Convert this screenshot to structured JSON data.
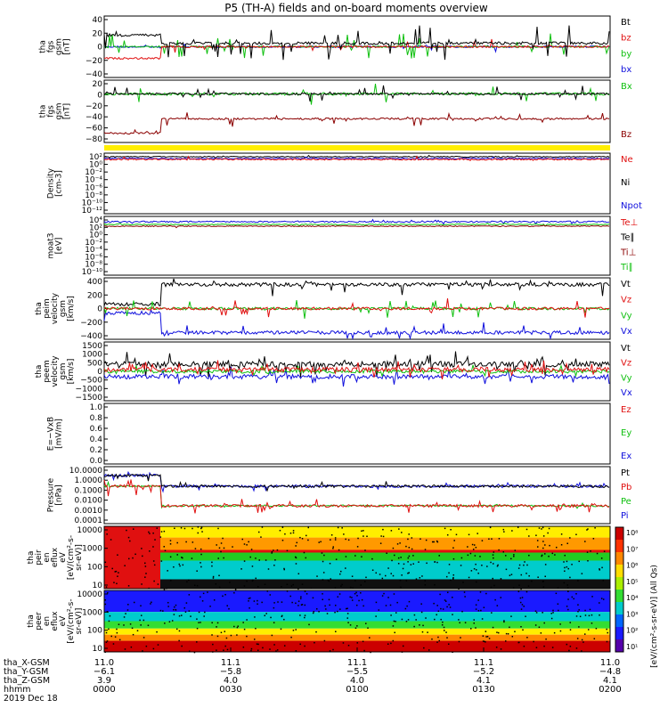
{
  "title": "P5 (TH-A) fields and on-board moments overview",
  "colorbar_unit": "[eV/(cm²-s-sr-eV)] (All Qs)",
  "colorbar_ticks": [
    "10⁸",
    "10⁷",
    "10⁶",
    "10⁵",
    "10⁴",
    "10³",
    "10²",
    "10¹"
  ],
  "colors": {
    "black": "#000000",
    "red": "#e01010",
    "green": "#10c010",
    "blue": "#1010dd",
    "darkred": "#8b0000",
    "yellow": "#ffee00"
  },
  "panels": [
    {
      "id": "fgs-gsm",
      "ylabel_lines": [
        "tha",
        "fgs",
        "gsm",
        "[nT]"
      ],
      "ticks": [
        "40",
        "20",
        "0",
        "−20",
        "−40"
      ],
      "legend": [
        {
          "text": "Bt",
          "color": "#000000"
        },
        {
          "text": "bz",
          "color": "#e01010"
        },
        {
          "text": "by",
          "color": "#10c010"
        },
        {
          "text": "bx",
          "color": "#1010dd"
        }
      ]
    },
    {
      "id": "fgs-gsm-dsl",
      "ylabel_lines": [
        "tha",
        "fgs",
        "gsm",
        "[nT]"
      ],
      "ticks": [
        "20",
        "0",
        "−20",
        "−40",
        "−60",
        "−80"
      ],
      "legend": [
        {
          "text": "Bx",
          "color": "#10c010"
        },
        {
          "text": "Bz",
          "color": "#8b0000"
        }
      ]
    },
    {
      "id": "density",
      "ylabel_lines": [
        "Density",
        "[cm-3]"
      ],
      "ticks": [
        "10²",
        "10⁰",
        "10⁻²",
        "10⁻⁴",
        "10⁻⁶",
        "10⁻⁸",
        "10⁻¹⁰",
        "10⁻¹²"
      ],
      "legend": [
        {
          "text": "Ne",
          "color": "#e01010"
        },
        {
          "text": "Ni",
          "color": "#000000"
        },
        {
          "text": "Npot",
          "color": "#1010dd"
        }
      ]
    },
    {
      "id": "temperature",
      "ylabel_lines": [
        "moat3",
        "[eV]"
      ],
      "ticks": [
        "10⁴",
        "10²",
        "10⁰",
        "10⁻²",
        "10⁻⁴",
        "10⁻⁶",
        "10⁻⁸",
        "10⁻¹⁰"
      ],
      "legend": [
        {
          "text": "Te⊥",
          "color": "#e01010"
        },
        {
          "text": "Te∥",
          "color": "#000000"
        },
        {
          "text": "Ti⊥",
          "color": "#8b0000"
        },
        {
          "text": "Ti∥",
          "color": "#10c010"
        }
      ]
    },
    {
      "id": "ion-velocity",
      "ylabel_lines": [
        "tha",
        "peim",
        "velocity",
        "gsm",
        "[km/s]"
      ],
      "ticks": [
        "400",
        "200",
        "0",
        "−200",
        "−400"
      ],
      "legend": [
        {
          "text": "Vt",
          "color": "#000000"
        },
        {
          "text": "Vz",
          "color": "#e01010"
        },
        {
          "text": "Vy",
          "color": "#10c010"
        },
        {
          "text": "Vx",
          "color": "#1010dd"
        }
      ]
    },
    {
      "id": "electron-velocity",
      "ylabel_lines": [
        "tha",
        "peem",
        "velocity",
        "gsm",
        "[km/s]"
      ],
      "ticks": [
        "1500",
        "1000",
        "500",
        "0",
        "−500",
        "−1000",
        "−1500"
      ],
      "legend": [
        {
          "text": "Vt",
          "color": "#000000"
        },
        {
          "text": "Vz",
          "color": "#e01010"
        },
        {
          "text": "Vy",
          "color": "#10c010"
        },
        {
          "text": "Vx",
          "color": "#1010dd"
        }
      ]
    },
    {
      "id": "efield",
      "ylabel_lines": [
        "E=−VxB",
        "[mV/m]"
      ],
      "ticks": [
        "1.0",
        "0.8",
        "0.6",
        "0.4",
        "0.2",
        "0.0"
      ],
      "legend": [
        {
          "text": "Ez",
          "color": "#e01010"
        },
        {
          "text": "Ey",
          "color": "#10c010"
        },
        {
          "text": "Ex",
          "color": "#1010dd"
        }
      ]
    },
    {
      "id": "pressure",
      "ylabel_lines": [
        "Pressure",
        "[nPa]"
      ],
      "ticks": [
        "10.0000",
        "1.0000",
        "0.1000",
        "0.0100",
        "0.0010",
        "0.0001"
      ],
      "legend": [
        {
          "text": "Pt",
          "color": "#000000"
        },
        {
          "text": "Pb",
          "color": "#e01010"
        },
        {
          "text": "Pe",
          "color": "#10c010"
        },
        {
          "text": "Pi",
          "color": "#1010dd"
        }
      ]
    },
    {
      "id": "ion-spectrogram",
      "ylabel_lines": [
        "tha",
        "peir",
        "en",
        "eflux",
        "eV",
        "[eV/(cm²-s-",
        "sr-eV)]"
      ],
      "ticks": [
        "10000",
        "1000",
        "100",
        "10"
      ],
      "legend": []
    },
    {
      "id": "electron-spectrogram",
      "ylabel_lines": [
        "tha",
        "peer",
        "en",
        "eflux",
        "eV",
        "[eV/(cm²-s-",
        "sr-eV)]"
      ],
      "ticks": [
        "10000",
        "1000",
        "100",
        "10"
      ],
      "legend": []
    }
  ],
  "xaxis": {
    "row_labels": [
      "tha_X-GSM",
      "tha_Y-GSM",
      "tha_Z-GSM",
      "hhmm",
      "2019 Dec 18"
    ],
    "columns": [
      {
        "values": [
          "11.0",
          "−6.1",
          "3.9",
          "0000"
        ]
      },
      {
        "values": [
          "11.1",
          "−5.8",
          "4.0",
          "0030"
        ]
      },
      {
        "values": [
          "11.1",
          "−5.5",
          "4.0",
          "0100"
        ]
      },
      {
        "values": [
          "11.1",
          "−5.2",
          "4.1",
          "0130"
        ]
      },
      {
        "values": [
          "11.0",
          "−4.8",
          "4.1",
          "0200"
        ]
      }
    ]
  },
  "chart_data": {
    "type": "line",
    "title": "P5 (TH-A) fields and on-board moments overview",
    "x": {
      "label": "hhmm",
      "ticks": [
        "0000",
        "0030",
        "0100",
        "0130",
        "0200"
      ],
      "date": "2019 Dec 18"
    },
    "series": [
      {
        "panel": "fgs-gsm",
        "name": "Bt",
        "approx": "~16 nT until 00:10, then 0–40 with spikes"
      },
      {
        "panel": "fgs-gsm",
        "name": "bz",
        "approx": "~−16 nT until 00:10, then near 0"
      },
      {
        "panel": "fgs-gsm",
        "name": "by",
        "approx": "near 0 with negative spikes"
      },
      {
        "panel": "fgs-gsm",
        "name": "bx",
        "approx": "near 0"
      },
      {
        "panel": "fgs-gsm-dsl",
        "name": "Bx",
        "approx": "~10 nT"
      },
      {
        "panel": "fgs-gsm-dsl",
        "name": "Bz",
        "approx": "~−70 nT until 00:10, then ~−45 nT"
      },
      {
        "panel": "ion-velocity",
        "name": "Vt",
        "approx": "~350 km/s"
      },
      {
        "panel": "ion-velocity",
        "name": "Vx",
        "approx": "~−350 km/s"
      },
      {
        "panel": "pressure",
        "name": "Pt",
        "approx": "~0.5 nPa"
      }
    ]
  }
}
